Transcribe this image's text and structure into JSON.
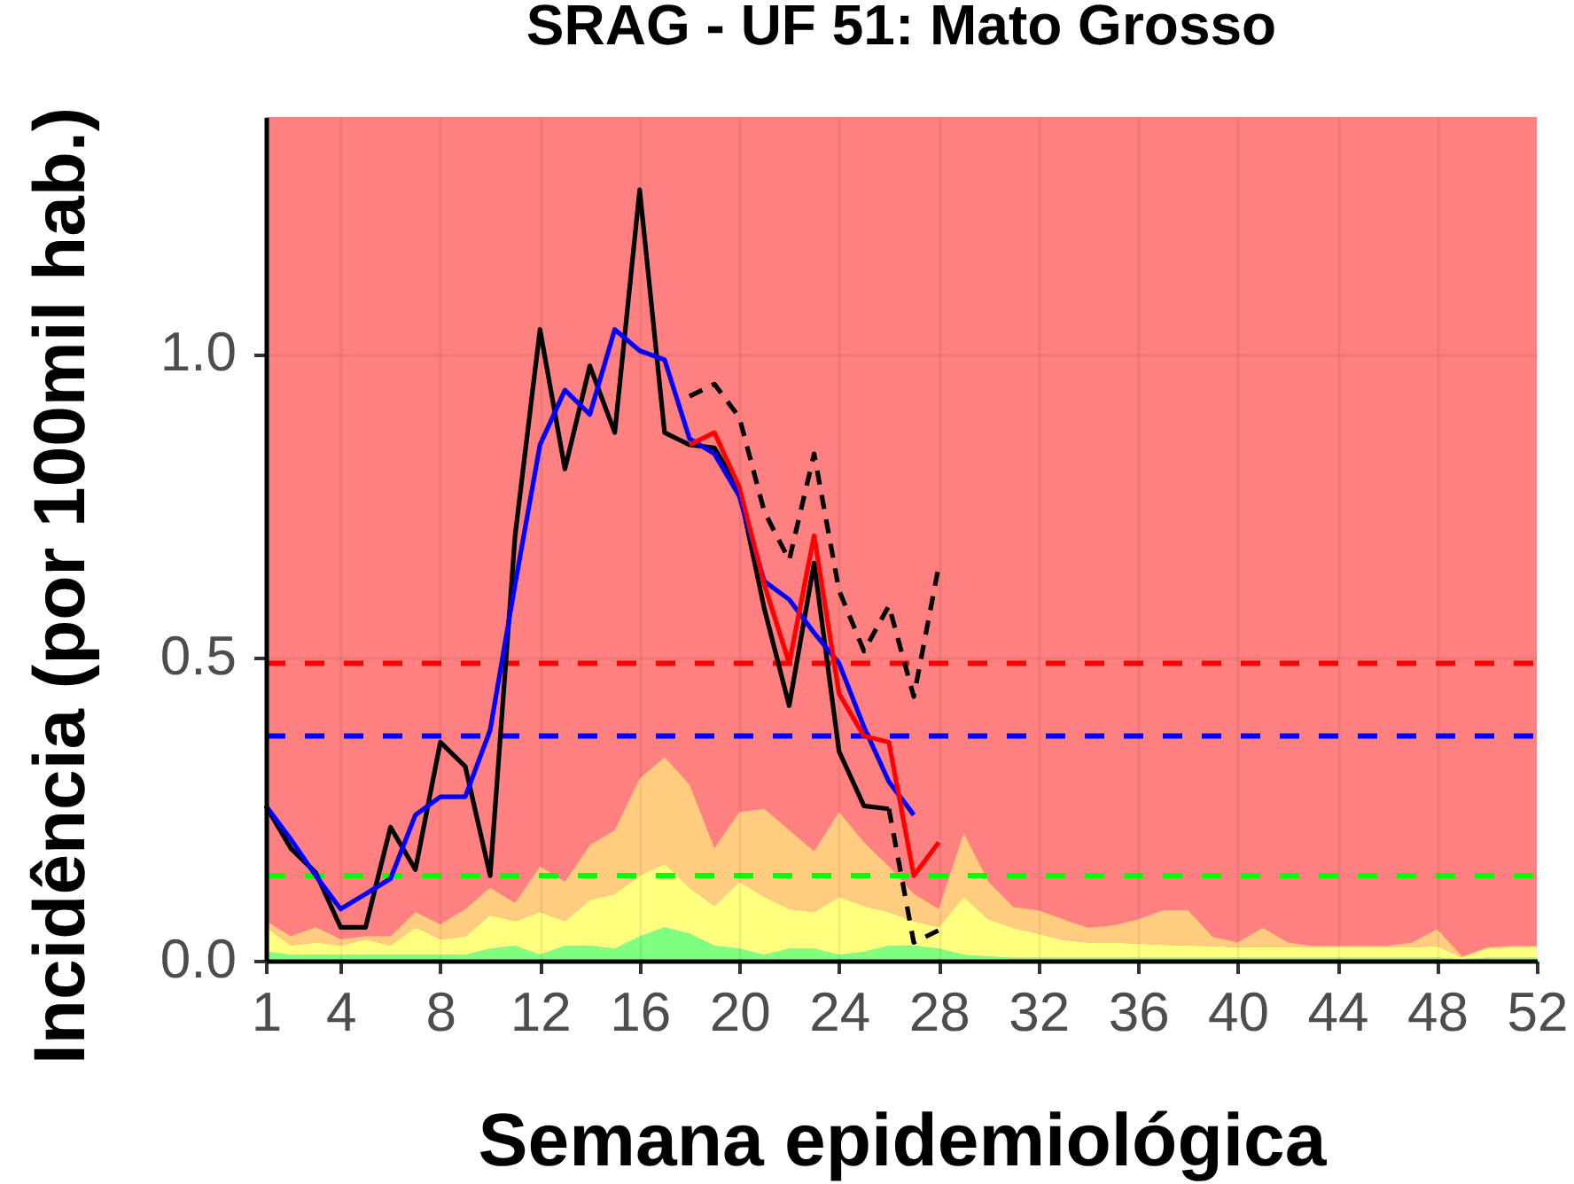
{
  "chart_data": {
    "type": "line",
    "title": "SRAG - UF 51: Mato Grosso",
    "xlabel": "Semana epidemiológica",
    "ylabel": "Incidência (por 100mil hab.)",
    "x": [
      1,
      2,
      3,
      4,
      5,
      6,
      7,
      8,
      9,
      10,
      11,
      12,
      13,
      14,
      15,
      16,
      17,
      18,
      19,
      20,
      21,
      22,
      23,
      24,
      25,
      26,
      27,
      28,
      29,
      30,
      31,
      32,
      33,
      34,
      35,
      36,
      37,
      38,
      39,
      40,
      41,
      42,
      43,
      44,
      45,
      46,
      47,
      48,
      49,
      50,
      51,
      52
    ],
    "stacked": true,
    "series": [
      {
        "type": "area",
        "color": "#80ff80",
        "values": [
          0.015,
          0.01,
          0.01,
          0.01,
          0.01,
          0.01,
          0.01,
          0.01,
          0.01,
          0.02,
          0.025,
          0.01,
          0.025,
          0.025,
          0.02,
          0.04,
          0.055,
          0.045,
          0.025,
          0.02,
          0.01,
          0.02,
          0.02,
          0.01,
          0.015,
          0.025,
          0.025,
          0.02,
          0.01,
          0.007,
          0.005,
          0.005,
          0.005,
          0.005,
          0.005,
          0.005,
          0.005,
          0.005,
          0.005,
          0.005,
          0.005,
          0.005,
          0.005,
          0.005,
          0.005,
          0.005,
          0.005,
          0.005,
          0.003,
          0.005,
          0.005,
          0.005
        ]
      },
      {
        "type": "area",
        "color": "#ffff80",
        "values": [
          0.04,
          0.015,
          0.02,
          0.015,
          0.025,
          0.015,
          0.045,
          0.025,
          0.03,
          0.055,
          0.04,
          0.07,
          0.04,
          0.075,
          0.09,
          0.1,
          0.105,
          0.075,
          0.065,
          0.11,
          0.095,
          0.065,
          0.06,
          0.095,
          0.075,
          0.055,
          0.04,
          0.035,
          0.095,
          0.061,
          0.049,
          0.039,
          0.029,
          0.025,
          0.025,
          0.023,
          0.021,
          0.02,
          0.019,
          0.017,
          0.017,
          0.017,
          0.017,
          0.017,
          0.017,
          0.017,
          0.017,
          0.019,
          0.002,
          0.015,
          0.017,
          0.017
        ]
      },
      {
        "type": "area",
        "color": "#ffcc80",
        "values": [
          0.01,
          0.015,
          0.025,
          0.01,
          0.005,
          0.015,
          0.025,
          0.025,
          0.045,
          0.045,
          0.03,
          0.075,
          0.065,
          0.09,
          0.105,
          0.16,
          0.175,
          0.17,
          0.095,
          0.115,
          0.145,
          0.13,
          0.1,
          0.14,
          0.105,
          0.075,
          0.045,
          0.03,
          0.105,
          0.062,
          0.034,
          0.039,
          0.034,
          0.024,
          0.028,
          0.04,
          0.057,
          0.058,
          0.015,
          0.008,
          0.032,
          0.008,
          0.002,
          0.002,
          0.002,
          0.002,
          0.008,
          0.028,
          0.002,
          0.002,
          0.002,
          0.002
        ]
      },
      {
        "color": "#000000",
        "x": [
          1,
          2,
          3,
          4,
          5,
          6,
          7,
          8,
          9,
          10,
          11,
          12,
          13,
          14,
          15,
          16,
          17,
          18,
          19,
          20,
          21,
          22,
          23,
          24,
          25,
          26
        ],
        "values": [
          0.255,
          0.185,
          0.145,
          0.055,
          0.055,
          0.22,
          0.15,
          0.36,
          0.32,
          0.14,
          0.7,
          1.04,
          0.81,
          0.98,
          0.87,
          1.27,
          0.87,
          0.85,
          0.845,
          0.775,
          0.58,
          0.42,
          0.655,
          0.345,
          0.255,
          0.25
        ]
      },
      {
        "color": "#0000ff",
        "x": [
          1,
          2,
          3,
          4,
          5,
          6,
          7,
          8,
          9,
          10,
          11,
          12,
          13,
          14,
          15,
          16,
          17,
          18,
          19,
          20,
          21,
          22,
          23,
          24,
          25,
          26,
          27
        ],
        "values": [
          0.255,
          0.2,
          0.14,
          0.085,
          0.11,
          0.135,
          0.24,
          0.27,
          0.27,
          0.38,
          0.62,
          0.85,
          0.94,
          0.9,
          1.04,
          1.005,
          0.99,
          0.86,
          0.835,
          0.765,
          0.625,
          0.595,
          0.54,
          0.49,
          0.385,
          0.295,
          0.24
        ]
      },
      {
        "color": "#ff0000",
        "x": [
          18,
          19,
          20,
          21,
          22,
          23,
          24,
          25,
          26,
          27,
          28
        ],
        "values": [
          0.85,
          0.87,
          0.78,
          0.62,
          0.49,
          0.7,
          0.44,
          0.37,
          0.36,
          0.14,
          0.195
        ]
      },
      {
        "color": "#000000",
        "line_style": "dashed",
        "x": [
          18,
          19,
          20,
          21,
          22,
          23,
          24,
          25,
          26,
          27,
          28
        ],
        "values": [
          0.93,
          0.95,
          0.895,
          0.74,
          0.66,
          0.835,
          0.61,
          0.51,
          0.585,
          0.435,
          0.65
        ]
      },
      {
        "color": "#000000",
        "line_style": "dashed",
        "x": [
          26,
          27,
          28
        ],
        "values": [
          0.25,
          0.03,
          0.05
        ]
      }
    ],
    "bands": [
      {
        "axis": "y",
        "from": 0,
        "to": 1.39,
        "color": "#ff8080"
      }
    ],
    "ref_lines": [
      {
        "axis": "y",
        "value": 0.49,
        "color": "#ff0000",
        "line_style": "dashed"
      },
      {
        "axis": "y",
        "value": 0.37,
        "color": "#0000ff",
        "line_style": "dashed"
      },
      {
        "axis": "y",
        "value": 0.14,
        "color": "#00ff00",
        "line_style": "dashed"
      }
    ],
    "xlim": [
      1,
      52
    ],
    "ylim": [
      0,
      1.39
    ],
    "xticks": [
      1,
      4,
      8,
      12,
      16,
      20,
      24,
      28,
      32,
      36,
      40,
      44,
      48,
      52
    ],
    "yticks": [
      {
        "value": 0,
        "label": "0.0"
      },
      0.5,
      {
        "value": 1,
        "label": "1.0"
      }
    ],
    "grid": true
  }
}
